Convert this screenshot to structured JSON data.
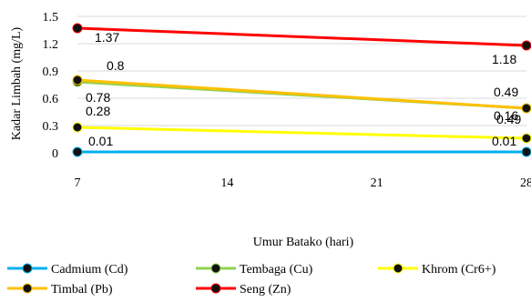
{
  "chart_data": {
    "type": "line",
    "xlabel": "Umur Batako (hari)",
    "ylabel": "Kadar Limbah (mg/L)",
    "x_ticks": [
      7,
      14,
      21,
      28
    ],
    "y_ticks": [
      "0",
      "0.3",
      "0.6",
      "0.9",
      "1.2",
      "1.5"
    ],
    "xlim": [
      7,
      28
    ],
    "ylim": [
      0,
      1.5
    ],
    "grid": "horizontal",
    "legend_position": "bottom",
    "series": [
      {
        "name": "Cadmium (Cd)",
        "color": "#00b0f0",
        "x": [
          7,
          28
        ],
        "values": [
          0.01,
          0.01
        ],
        "labels": [
          "0.01",
          "0.01"
        ]
      },
      {
        "name": "Tembaga (Cu)",
        "color": "#92d050",
        "x": [
          7,
          28
        ],
        "values": [
          0.78,
          0.49
        ],
        "labels": [
          "0.78",
          "0.49"
        ]
      },
      {
        "name": "Khrom (Cr6+)",
        "color": "#ffff00",
        "x": [
          7,
          28
        ],
        "values": [
          0.28,
          0.16
        ],
        "labels": [
          "0.28",
          "0.16"
        ]
      },
      {
        "name": "Timbal (Pb)",
        "color": "#ffc000",
        "x": [
          7,
          28
        ],
        "values": [
          0.8,
          0.49
        ],
        "labels": [
          "0.8",
          "0.49"
        ]
      },
      {
        "name": "Seng (Zn)",
        "color": "#ff0000",
        "x": [
          7,
          28
        ],
        "values": [
          1.37,
          1.18
        ],
        "labels": [
          "1.37",
          "1.18"
        ]
      }
    ]
  }
}
